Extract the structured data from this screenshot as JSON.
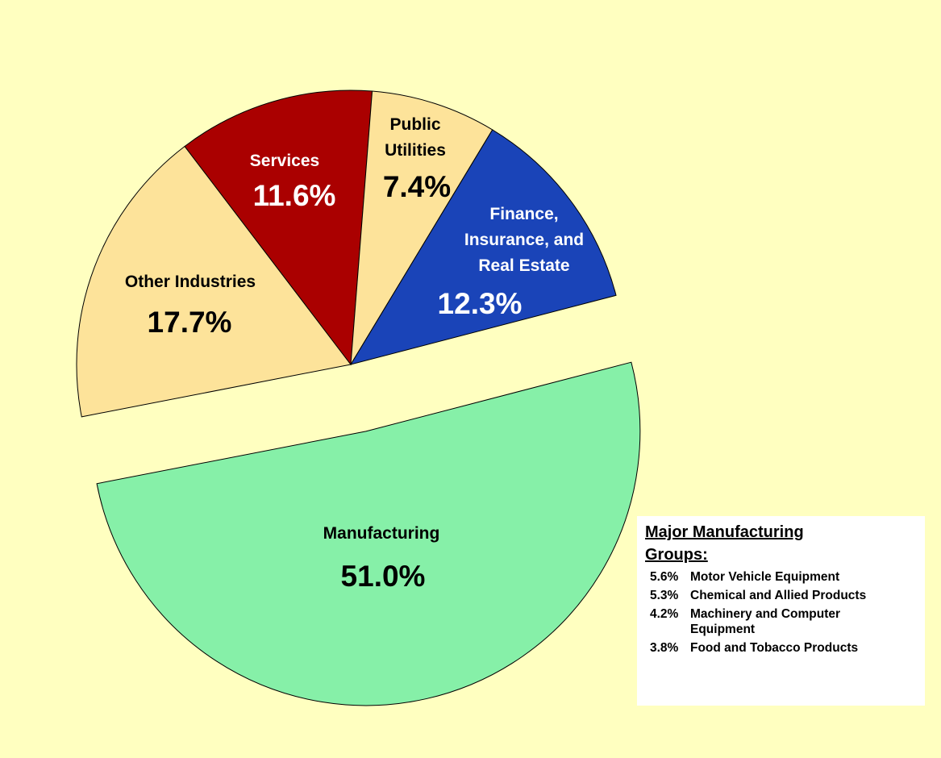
{
  "chart_data": {
    "type": "pie",
    "categories": [
      "Manufacturing",
      "Other Industries",
      "Services",
      "Public Utilities",
      "Finance, Insurance, and Real Estate"
    ],
    "values": [
      51.0,
      17.7,
      11.6,
      7.4,
      12.3
    ],
    "value_labels": [
      "51.0%",
      "17.7%",
      "11.6%",
      "7.4%",
      "12.3%"
    ],
    "colors": [
      "#86f0a8",
      "#fde39a",
      "#aa0000",
      "#fde39a",
      "#1a44b8"
    ],
    "label_colors": [
      "#000000",
      "#000000",
      "#ffffff",
      "#000000",
      "#ffffff"
    ],
    "inset": {
      "title": "Major Manufacturing Groups:",
      "items": [
        {
          "share": "5.6%",
          "name": "Motor Vehicle Equipment"
        },
        {
          "share": "5.3%",
          "name": "Chemical and Allied Products"
        },
        {
          "share": "4.2%",
          "name": "Machinery and Computer Equipment"
        },
        {
          "share": "3.8%",
          "name": "Food and Tobacco Products"
        }
      ]
    }
  }
}
